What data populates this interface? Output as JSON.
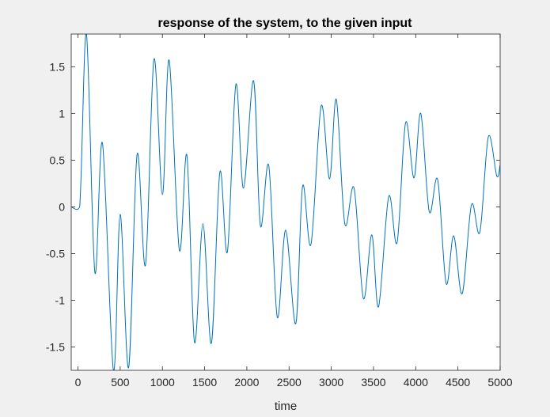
{
  "chart_data": {
    "type": "line",
    "title": "response of the system, to the given input",
    "xlabel": "time",
    "ylabel": "",
    "xlim": [
      -80,
      5000
    ],
    "ylim": [
      -1.75,
      1.85
    ],
    "xticks": [
      0,
      500,
      1000,
      1500,
      2000,
      2500,
      3000,
      3500,
      4000,
      4500,
      5000
    ],
    "xtick_labels": [
      "0",
      "500",
      "1000",
      "1500",
      "2000",
      "2500",
      "3000",
      "3500",
      "4000",
      "4500",
      "5000"
    ],
    "yticks": [
      -1.5,
      -1,
      -0.5,
      0,
      0.5,
      1,
      1.5
    ],
    "ytick_labels": [
      "-1.5",
      "-1",
      "-0.5",
      "0",
      "0.5",
      "1",
      "1.5"
    ],
    "grid": false,
    "line_color": "#0072bd",
    "series": [
      {
        "x": [
          -80,
          20,
          100,
          200,
          290,
          420,
          500,
          600,
          700,
          800,
          900,
          1000,
          1080,
          1200,
          1290,
          1380,
          1480,
          1580,
          1680,
          1770,
          1870,
          1960,
          2080,
          2160,
          2260,
          2360,
          2460,
          2580,
          2660,
          2760,
          2880,
          2980,
          3060,
          3160,
          3270,
          3380,
          3480,
          3560,
          3680,
          3780,
          3880,
          3980,
          4060,
          4160,
          4260,
          4360,
          4450,
          4550,
          4660,
          4760,
          4860,
          4960,
          5000
        ],
        "y": [
          0,
          0,
          1.85,
          -0.7,
          0.68,
          -1.75,
          -0.08,
          -1.72,
          0.56,
          -0.62,
          1.58,
          0.13,
          1.57,
          -0.46,
          0.55,
          -1.45,
          -0.18,
          -1.46,
          0.37,
          -0.48,
          1.31,
          0.2,
          1.35,
          -0.2,
          0.44,
          -1.18,
          -0.25,
          -1.25,
          0.22,
          -0.4,
          1.08,
          0.3,
          1.15,
          -0.18,
          0.2,
          -0.98,
          -0.3,
          -1.07,
          0.11,
          -0.38,
          0.9,
          0.31,
          1.0,
          -0.05,
          0.29,
          -0.82,
          -0.31,
          -0.93,
          0.02,
          -0.27,
          0.75,
          0.33,
          0.45
        ]
      }
    ]
  }
}
